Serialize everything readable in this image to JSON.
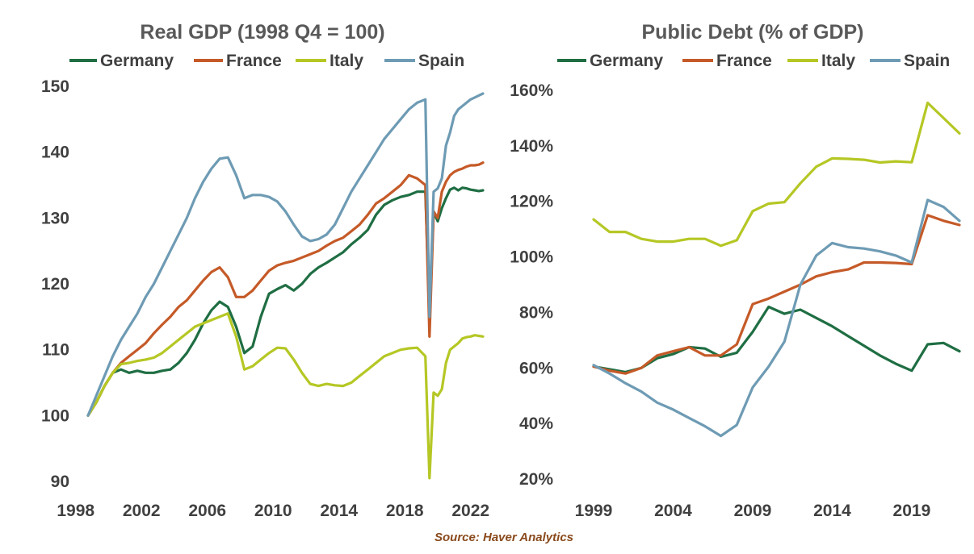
{
  "colors": {
    "germany": "#1f6e43",
    "france": "#c55a28",
    "italy": "#b5c724",
    "spain": "#6e9bb4",
    "text": "#404040",
    "title": "#595959",
    "source": "#8a4a1c"
  },
  "source": "Source: Haver Analytics",
  "chart_data": [
    {
      "type": "line",
      "title": "Real GDP (1998 Q4 = 100)",
      "xlabel": "",
      "ylabel": "",
      "xlim": [
        1998.75,
        2022.75
      ],
      "ylim": [
        90,
        150
      ],
      "x_ticks": [
        1998,
        2002,
        2006,
        2010,
        2014,
        2018,
        2022
      ],
      "x_tick_labels": [
        "1998",
        "2002",
        "2006",
        "2010",
        "2014",
        "2018",
        "2022"
      ],
      "y_ticks": [
        90,
        100,
        110,
        120,
        130,
        140,
        150
      ],
      "y_tick_labels": [
        "90",
        "100",
        "110",
        "120",
        "130",
        "140",
        "150"
      ],
      "grid": false,
      "legend": "top",
      "series": [
        {
          "name": "Germany",
          "color_key": "germany",
          "x": [
            1998.75,
            1999.25,
            1999.75,
            2000.25,
            2000.75,
            2001.25,
            2001.75,
            2002.25,
            2002.75,
            2003.25,
            2003.75,
            2004.25,
            2004.75,
            2005.25,
            2005.75,
            2006.25,
            2006.75,
            2007.25,
            2007.75,
            2008.25,
            2008.75,
            2009.25,
            2009.75,
            2010.25,
            2010.75,
            2011.25,
            2011.75,
            2012.25,
            2012.75,
            2013.25,
            2013.75,
            2014.25,
            2014.75,
            2015.25,
            2015.75,
            2016.25,
            2016.75,
            2017.25,
            2017.75,
            2018.25,
            2018.75,
            2019.25,
            2019.5,
            2019.75,
            2020.0,
            2020.25,
            2020.5,
            2020.75,
            2021.0,
            2021.25,
            2021.5,
            2021.75,
            2022.0,
            2022.25,
            2022.5,
            2022.75
          ],
          "y": [
            100,
            102,
            104.5,
            106.5,
            107,
            106.5,
            106.8,
            106.5,
            106.5,
            106.8,
            107,
            108,
            109.5,
            111.5,
            114,
            116,
            117.3,
            116.5,
            113.5,
            109.5,
            110.5,
            115,
            118.5,
            119.2,
            119.8,
            119,
            120,
            121.5,
            122.5,
            123.2,
            124,
            124.8,
            126,
            127,
            128.2,
            130.5,
            132,
            132.7,
            133.2,
            133.5,
            134,
            134,
            115,
            131,
            129.5,
            131.5,
            133,
            134.3,
            134.6,
            134.2,
            134.6,
            134.5,
            134.3,
            134.2,
            134.1,
            134.2
          ]
        },
        {
          "name": "France",
          "color_key": "france",
          "x": [
            1998.75,
            1999.25,
            1999.75,
            2000.25,
            2000.75,
            2001.25,
            2001.75,
            2002.25,
            2002.75,
            2003.25,
            2003.75,
            2004.25,
            2004.75,
            2005.25,
            2005.75,
            2006.25,
            2006.75,
            2007.25,
            2007.75,
            2008.25,
            2008.75,
            2009.25,
            2009.75,
            2010.25,
            2010.75,
            2011.25,
            2011.75,
            2012.25,
            2012.75,
            2013.25,
            2013.75,
            2014.25,
            2014.75,
            2015.25,
            2015.75,
            2016.25,
            2016.75,
            2017.25,
            2017.75,
            2018.25,
            2018.75,
            2019.25,
            2019.5,
            2019.75,
            2020.0,
            2020.25,
            2020.5,
            2020.75,
            2021.0,
            2021.25,
            2021.5,
            2021.75,
            2022.0,
            2022.25,
            2022.5,
            2022.75
          ],
          "y": [
            100,
            102,
            104.5,
            106.5,
            108,
            109,
            110,
            111,
            112.5,
            113.8,
            115,
            116.5,
            117.5,
            119,
            120.5,
            121.8,
            122.5,
            121,
            118,
            118,
            119,
            120.5,
            122,
            122.8,
            123.2,
            123.5,
            124,
            124.5,
            125,
            125.8,
            126.5,
            127,
            128,
            129,
            130.5,
            132.2,
            133,
            134,
            135,
            136.5,
            136,
            135,
            112,
            131,
            130,
            134,
            135.5,
            136.5,
            137,
            137.3,
            137.5,
            137.8,
            138,
            138,
            138.1,
            138.4
          ]
        },
        {
          "name": "Italy",
          "color_key": "italy",
          "x": [
            1998.75,
            1999.25,
            1999.75,
            2000.25,
            2000.75,
            2001.25,
            2001.75,
            2002.25,
            2002.75,
            2003.25,
            2003.75,
            2004.25,
            2004.75,
            2005.25,
            2005.75,
            2006.25,
            2006.75,
            2007.25,
            2007.75,
            2008.25,
            2008.75,
            2009.25,
            2009.75,
            2010.25,
            2010.75,
            2011.25,
            2011.75,
            2012.25,
            2012.75,
            2013.25,
            2013.75,
            2014.25,
            2014.75,
            2015.25,
            2015.75,
            2016.25,
            2016.75,
            2017.25,
            2017.75,
            2018.25,
            2018.75,
            2019.25,
            2019.5,
            2019.75,
            2020.0,
            2020.25,
            2020.5,
            2020.75,
            2021.0,
            2021.25,
            2021.5,
            2021.75,
            2022.0,
            2022.25,
            2022.5,
            2022.75
          ],
          "y": [
            100,
            102,
            104.5,
            106.5,
            107.8,
            108,
            108.3,
            108.5,
            108.8,
            109.5,
            110.5,
            111.5,
            112.5,
            113.5,
            114,
            114.5,
            115,
            115.5,
            112,
            107,
            107.5,
            108.5,
            109.5,
            110.3,
            110.2,
            108.5,
            106.5,
            104.8,
            104.5,
            104.8,
            104.6,
            104.5,
            105,
            106,
            107,
            108,
            109,
            109.5,
            110,
            110.2,
            110.3,
            109,
            90.5,
            103.5,
            103,
            104,
            108,
            110,
            110.5,
            111,
            111.7,
            111.9,
            112,
            112.2,
            112.1,
            112
          ]
        },
        {
          "name": "Spain",
          "color_key": "spain",
          "x": [
            1998.75,
            1999.25,
            1999.75,
            2000.25,
            2000.75,
            2001.25,
            2001.75,
            2002.25,
            2002.75,
            2003.25,
            2003.75,
            2004.25,
            2004.75,
            2005.25,
            2005.75,
            2006.25,
            2006.75,
            2007.25,
            2007.75,
            2008.25,
            2008.75,
            2009.25,
            2009.75,
            2010.25,
            2010.75,
            2011.25,
            2011.75,
            2012.25,
            2012.75,
            2013.25,
            2013.75,
            2014.25,
            2014.75,
            2015.25,
            2015.75,
            2016.25,
            2016.75,
            2017.25,
            2017.75,
            2018.25,
            2018.75,
            2019.25,
            2019.5,
            2019.75,
            2020.0,
            2020.25,
            2020.5,
            2020.75,
            2021.0,
            2021.25,
            2021.5,
            2021.75,
            2022.0,
            2022.25,
            2022.5,
            2022.75
          ],
          "y": [
            100,
            103,
            106,
            109,
            111.5,
            113.5,
            115.5,
            118,
            120,
            122.5,
            125,
            127.5,
            130,
            133,
            135.5,
            137.5,
            139,
            139.2,
            136.5,
            133,
            133.5,
            133.5,
            133.2,
            132.5,
            131,
            129,
            127.2,
            126.5,
            126.8,
            127.5,
            129,
            131.5,
            134,
            136,
            138,
            140,
            142,
            143.5,
            145,
            146.5,
            147.5,
            148,
            115,
            134,
            134.5,
            136,
            141,
            143,
            145.5,
            146.5,
            147,
            147.5,
            148,
            148.3,
            148.6,
            148.9
          ]
        }
      ]
    },
    {
      "type": "line",
      "title": "Public Debt (% of GDP)",
      "xlabel": "",
      "ylabel": "",
      "xlim": [
        1999,
        2022
      ],
      "ylim": [
        20,
        160
      ],
      "x_ticks": [
        1999,
        2004,
        2009,
        2014,
        2019
      ],
      "x_tick_labels": [
        "1999",
        "2004",
        "2009",
        "2014",
        "2019"
      ],
      "y_ticks": [
        20,
        40,
        60,
        80,
        100,
        120,
        140,
        160
      ],
      "y_tick_labels": [
        "20%",
        "40%",
        "60%",
        "80%",
        "100%",
        "120%",
        "140%",
        "160%"
      ],
      "grid": false,
      "legend": "top",
      "series": [
        {
          "name": "Germany",
          "color_key": "germany",
          "x": [
            1999,
            2000,
            2001,
            2002,
            2003,
            2004,
            2005,
            2006,
            2007,
            2008,
            2009,
            2010,
            2011,
            2012,
            2013,
            2014,
            2015,
            2016,
            2017,
            2018,
            2019,
            2020,
            2021,
            2022
          ],
          "y": [
            60.5,
            59.5,
            58.5,
            60,
            63.5,
            65,
            67.5,
            67,
            64,
            65.5,
            73,
            82,
            79.5,
            81,
            78,
            75,
            71.5,
            68,
            64.5,
            61.5,
            59,
            68.5,
            69,
            66
          ]
        },
        {
          "name": "France",
          "color_key": "france",
          "x": [
            1999,
            2000,
            2001,
            2002,
            2003,
            2004,
            2005,
            2006,
            2007,
            2008,
            2009,
            2010,
            2011,
            2012,
            2013,
            2014,
            2015,
            2016,
            2017,
            2018,
            2019,
            2020,
            2021,
            2022
          ],
          "y": [
            60.5,
            59,
            58,
            60,
            64.5,
            66,
            67.5,
            64.5,
            64.5,
            68.5,
            83,
            85,
            87.5,
            90,
            93,
            94.5,
            95.5,
            98,
            98,
            97.8,
            97.4,
            115,
            113,
            111.5
          ]
        },
        {
          "name": "Italy",
          "color_key": "italy",
          "x": [
            1999,
            2000,
            2001,
            2002,
            2003,
            2004,
            2005,
            2006,
            2007,
            2008,
            2009,
            2010,
            2011,
            2012,
            2013,
            2014,
            2015,
            2016,
            2017,
            2018,
            2019,
            2020,
            2021,
            2022
          ],
          "y": [
            113.5,
            109,
            109,
            106.5,
            105.5,
            105.5,
            106.5,
            106.5,
            104,
            106,
            116.5,
            119.2,
            119.7,
            126.5,
            132.5,
            135.5,
            135.3,
            135,
            134,
            134.4,
            134.1,
            155.5,
            150,
            144.5
          ]
        },
        {
          "name": "Spain",
          "color_key": "spain",
          "x": [
            1999,
            2000,
            2001,
            2002,
            2003,
            2004,
            2005,
            2006,
            2007,
            2008,
            2009,
            2010,
            2011,
            2012,
            2013,
            2014,
            2015,
            2016,
            2017,
            2018,
            2019,
            2020,
            2021,
            2022
          ],
          "y": [
            61,
            58,
            54.5,
            51.5,
            47.5,
            45,
            42,
            39,
            35.5,
            39.5,
            53,
            60.5,
            69.5,
            90,
            100.5,
            105,
            103.5,
            103,
            102,
            100.5,
            98,
            120.5,
            118,
            113
          ]
        }
      ]
    }
  ]
}
